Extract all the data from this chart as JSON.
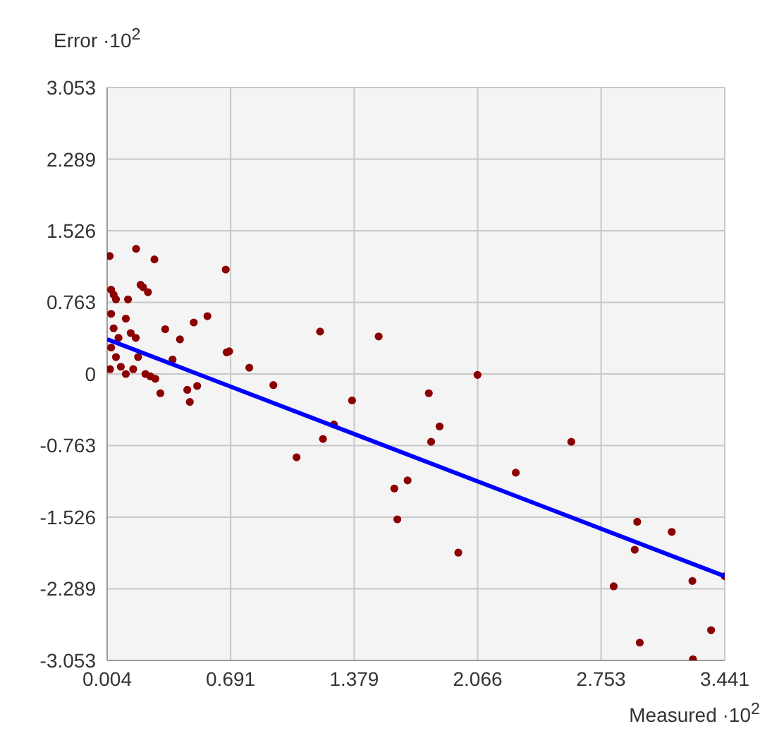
{
  "chart_data": {
    "type": "scatter",
    "xlabel": "Measured ·10$^{2}$",
    "ylabel": "Error ·10$^{2}$",
    "xlim": [
      0.004,
      3.441
    ],
    "ylim": [
      -3.053,
      3.053
    ],
    "xticks": [
      0.004,
      0.691,
      1.379,
      2.066,
      2.753,
      3.441
    ],
    "yticks": [
      -3.053,
      -2.289,
      -1.526,
      -0.763,
      0,
      0.763,
      1.526,
      2.289,
      3.053
    ],
    "grid": true,
    "marker": "circle",
    "series": [
      {
        "color": "#8b0000",
        "x": [
          0.018,
          0.165,
          0.267,
          0.664,
          0.026,
          0.04,
          0.204,
          0.231,
          0.19,
          0.053,
          0.12,
          0.026,
          0.108,
          0.135,
          0.163,
          0.327,
          0.409,
          0.486,
          0.562,
          1.189,
          1.515,
          0.683,
          0.669,
          0.795,
          0.929,
          0.3,
          0.464,
          0.45,
          0.505,
          0.368,
          0.245,
          0.272,
          0.217,
          0.026,
          0.053,
          0.08,
          0.108,
          0.149,
          0.176,
          0.02,
          0.067,
          0.04,
          1.367,
          1.266,
          1.205,
          1.058,
          1.794,
          1.854,
          1.807,
          2.065,
          1.602,
          1.676,
          1.619,
          1.958,
          2.278,
          2.587,
          2.954,
          2.94,
          3.146,
          2.823,
          3.261,
          3.441,
          2.968,
          3.365,
          3.264
        ],
        "values": [
          1.257,
          1.334,
          1.221,
          1.113,
          0.898,
          0.846,
          0.924,
          0.872,
          0.95,
          0.795,
          0.795,
          0.641,
          0.59,
          0.436,
          0.385,
          0.477,
          0.369,
          0.549,
          0.616,
          0.452,
          0.4,
          0.241,
          0.231,
          0.067,
          -0.118,
          -0.205,
          -0.298,
          -0.169,
          -0.128,
          0.154,
          -0.026,
          -0.051,
          0,
          0.282,
          0.18,
          0.077,
          0,
          0.051,
          0.18,
          0.051,
          0.385,
          0.487,
          -0.282,
          -0.539,
          -0.693,
          -0.888,
          -0.205,
          -0.559,
          -0.723,
          -0.01,
          -1.221,
          -1.134,
          -1.549,
          -1.904,
          -1.052,
          -0.723,
          -1.575,
          -1.873,
          -1.683,
          -2.263,
          -2.206,
          -2.155,
          -2.863,
          -2.73,
          -3.04
        ]
      },
      {
        "type": "line",
        "marker": "none",
        "color": "#0000ff",
        "x": [
          0.004,
          3.441
        ],
        "values": [
          0.37,
          -2.155
        ]
      }
    ]
  }
}
